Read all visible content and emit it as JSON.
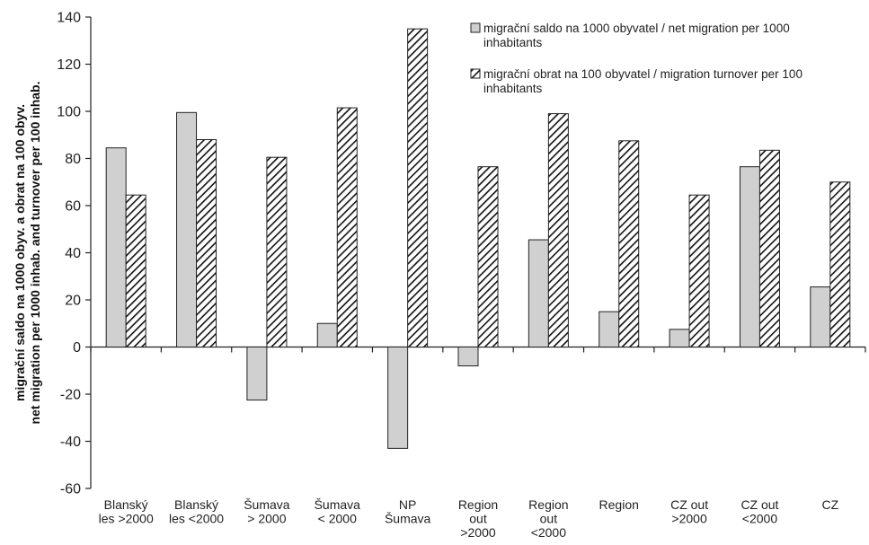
{
  "chart_data": {
    "type": "bar",
    "categories": [
      [
        "Blanský",
        "les >2000"
      ],
      [
        "Blanský",
        "les <2000"
      ],
      [
        "Šumava",
        "> 2000"
      ],
      [
        "Šumava",
        "< 2000"
      ],
      [
        "NP",
        "Šumava"
      ],
      [
        "Region",
        "out",
        ">2000"
      ],
      [
        "Region",
        "out",
        "<2000"
      ],
      [
        "Region"
      ],
      [
        "CZ out",
        ">2000"
      ],
      [
        "CZ out",
        "<2000"
      ],
      [
        "CZ"
      ]
    ],
    "series": [
      {
        "name_lines": [
          "migrační saldo na 1000 obyvatel / net migration per 1000",
          "inhabitants"
        ],
        "pattern": "solid",
        "color": "#d0d0d0",
        "values": [
          84.5,
          99.5,
          -22.5,
          10,
          -43,
          -8,
          45.5,
          15,
          7.5,
          76.5,
          25.5
        ]
      },
      {
        "name_lines": [
          "migrační obrat na 100 obyvatel / migration turnover per 100",
          "inhabitants"
        ],
        "pattern": "diagonal-hatch",
        "color": "#000000",
        "values": [
          64.5,
          88,
          80.5,
          101.5,
          135,
          76.5,
          99,
          87.5,
          64.5,
          83.5,
          70
        ]
      }
    ],
    "ylabel_lines": [
      "migrační saldo na 1000 obyv. a obrat na 100 obyv.",
      "net migration per 1000 inhab. and turnover per 100 inhab."
    ],
    "ylim": [
      -60,
      140
    ],
    "yticks": [
      -60,
      -40,
      -20,
      0,
      20,
      40,
      60,
      80,
      100,
      120,
      140
    ],
    "grid": false,
    "legend_position": "top-right"
  }
}
